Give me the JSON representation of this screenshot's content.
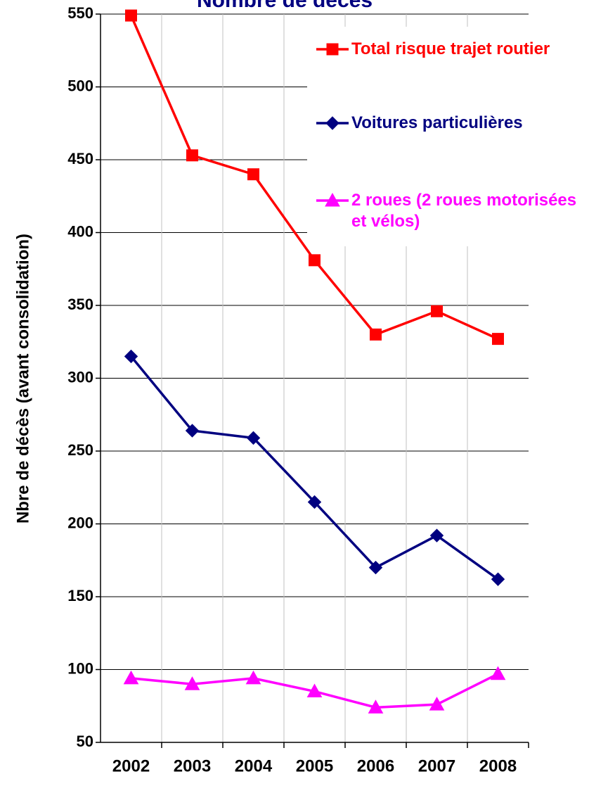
{
  "chart_data": {
    "type": "line",
    "title": "Nombre de décès",
    "y_label": "Nbre de décès (avant consolidation)",
    "categories": [
      "2002",
      "2003",
      "2004",
      "2005",
      "2006",
      "2007",
      "2008"
    ],
    "series": [
      {
        "name": "Total risque trajet routier",
        "color": "#ff0000",
        "marker": "square",
        "values": [
          549,
          453,
          440,
          381,
          330,
          346,
          327
        ]
      },
      {
        "name": "Voitures particulières",
        "color": "#000080",
        "marker": "diamond",
        "values": [
          315,
          264,
          259,
          215,
          170,
          192,
          162
        ]
      },
      {
        "name": "2 roues (2 roues motorisées et vélos)",
        "color": "#ff00ff",
        "marker": "triangle",
        "values": [
          94,
          90,
          94,
          85,
          74,
          76,
          97
        ]
      }
    ],
    "ylim": [
      50,
      550
    ],
    "yticks": [
      50,
      100,
      150,
      200,
      250,
      300,
      350,
      400,
      450,
      500,
      550
    ],
    "grid": true,
    "legend": "upper right"
  }
}
